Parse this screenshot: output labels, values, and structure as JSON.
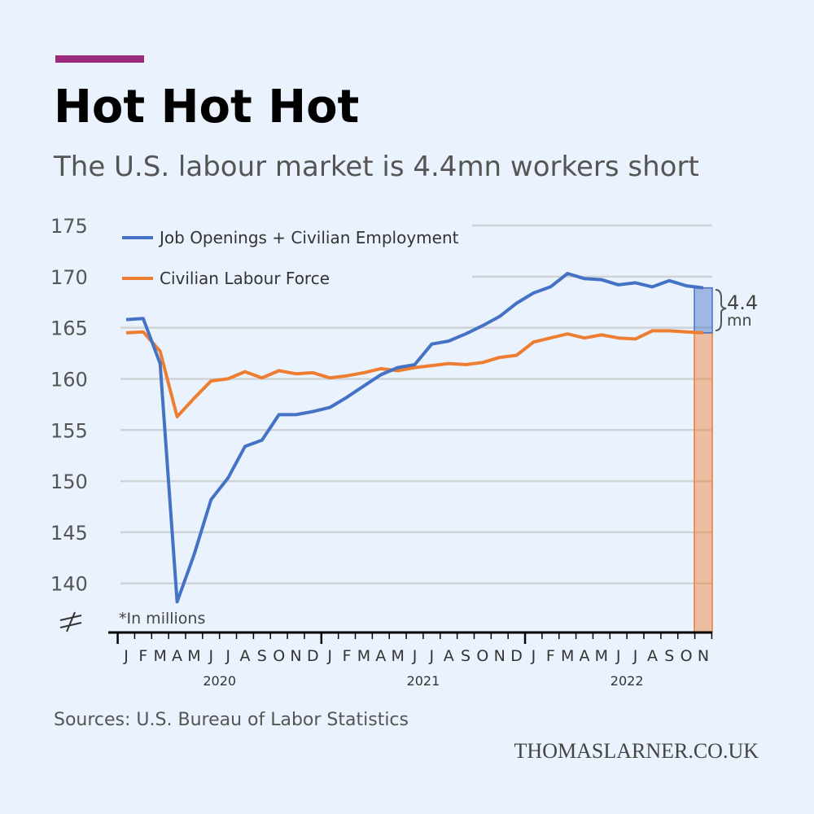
{
  "chart_data": {
    "type": "line",
    "title": "Hot Hot Hot",
    "subtitle": "The U.S. labour market is 4.4mn workers short",
    "note": "*In millions",
    "source": "Sources: U.S. Bureau of Labor Statistics",
    "watermark": "THOMASLARNER.CO.UK",
    "gap_label": "4.4",
    "gap_unit": "mn",
    "categories": [
      "J",
      "F",
      "M",
      "A",
      "M",
      "J",
      "J",
      "A",
      "S",
      "O",
      "N",
      "D",
      "J",
      "F",
      "M",
      "A",
      "M",
      "J",
      "J",
      "A",
      "S",
      "O",
      "N",
      "D",
      "J",
      "F",
      "M",
      "A",
      "M",
      "J",
      "J",
      "A",
      "S",
      "O",
      "N"
    ],
    "years": [
      "2020",
      "2021",
      "2022"
    ],
    "series": [
      {
        "name": "Job Openings + Civilian Employment",
        "color": "#4472c4",
        "values": [
          165.8,
          165.9,
          161.5,
          138.2,
          142.8,
          148.2,
          150.3,
          153.4,
          154.0,
          156.5,
          156.5,
          156.8,
          157.2,
          158.2,
          159.3,
          160.4,
          161.1,
          161.4,
          163.4,
          163.7,
          164.4,
          165.2,
          166.1,
          167.4,
          168.4,
          169.0,
          170.3,
          169.8,
          169.7,
          169.2,
          169.4,
          169.0,
          169.6,
          169.1,
          168.9
        ]
      },
      {
        "name": "Civilian Labour Force",
        "color": "#ed7d31",
        "values": [
          164.5,
          164.6,
          162.7,
          156.3,
          158.1,
          159.8,
          160.0,
          160.7,
          160.1,
          160.8,
          160.5,
          160.6,
          160.1,
          160.3,
          160.6,
          161.0,
          160.8,
          161.1,
          161.3,
          161.5,
          161.4,
          161.6,
          162.1,
          162.3,
          163.6,
          164.0,
          164.4,
          164.0,
          164.3,
          164.0,
          163.9,
          164.7,
          164.7,
          164.6,
          164.5
        ]
      }
    ],
    "ylim": [
      135.2,
      175
    ],
    "yticks": [
      140,
      145,
      150,
      155,
      160,
      165,
      170,
      175
    ],
    "grid": true,
    "legend": "upper left"
  }
}
